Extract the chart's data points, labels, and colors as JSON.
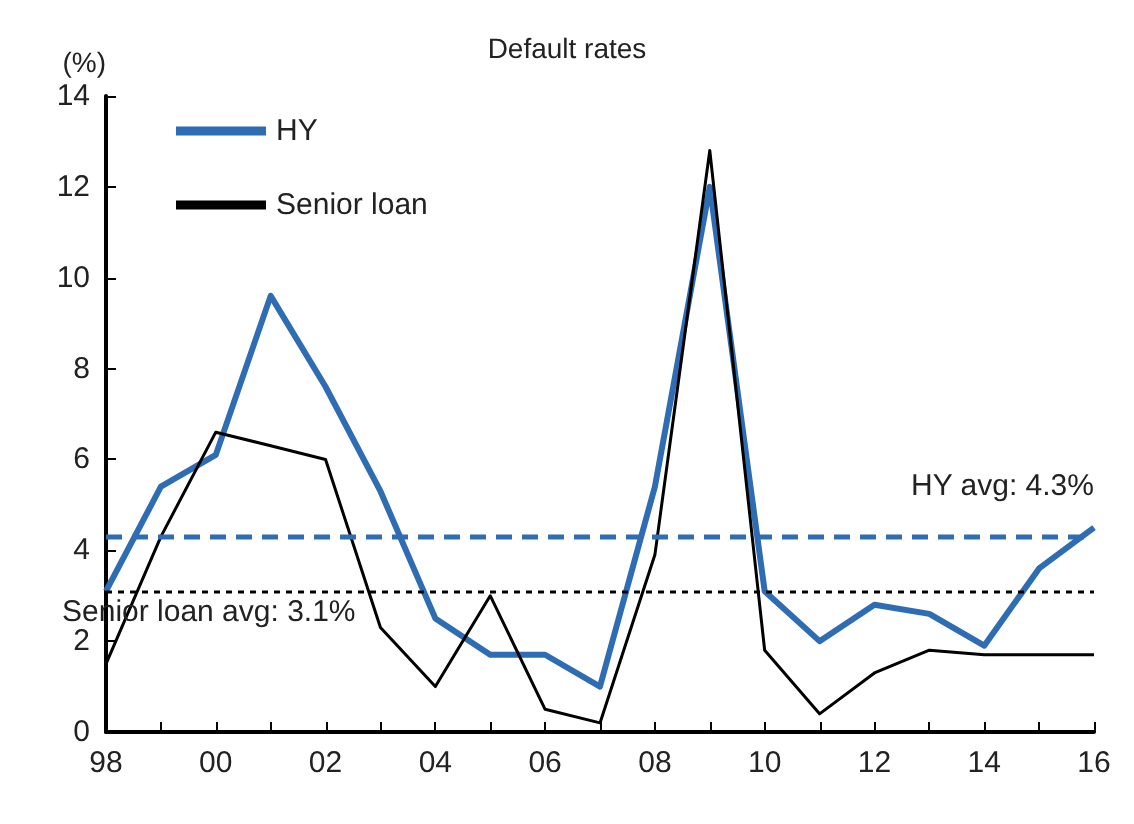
{
  "chart_data": {
    "type": "line",
    "title": "Default rates",
    "ylabel": "(%)",
    "categories": [
      "98",
      null,
      "00",
      null,
      "02",
      null,
      "04",
      null,
      "06",
      null,
      "08",
      null,
      "10",
      null,
      "12",
      null,
      "14",
      null,
      "16"
    ],
    "series": [
      {
        "name": "HY",
        "color": "#2e6db4",
        "values": [
          3.1,
          5.4,
          6.1,
          9.6,
          7.6,
          5.3,
          2.5,
          1.7,
          1.7,
          1.0,
          5.4,
          12.0,
          3.1,
          2.0,
          2.8,
          2.6,
          1.9,
          3.6,
          4.5
        ]
      },
      {
        "name": "Senior loan",
        "color": "#000000",
        "values": [
          1.5,
          4.3,
          6.6,
          6.3,
          6.0,
          2.3,
          1.0,
          3.0,
          0.5,
          0.2,
          3.9,
          12.8,
          1.8,
          0.4,
          1.3,
          1.8,
          1.7,
          1.7,
          1.7
        ]
      }
    ],
    "ylim": [
      0,
      14
    ],
    "yticks": [
      0,
      2,
      4,
      6,
      8,
      10,
      12,
      14
    ],
    "ref_lines": [
      {
        "axis": "y",
        "value": 4.3,
        "label": "HY avg: 4.3%",
        "color": "#2e6db4",
        "line_style": "dashed"
      },
      {
        "axis": "y",
        "value": 3.1,
        "label": "Senior loan avg: 3.1%",
        "color": "#000000",
        "line_style": "dotted"
      }
    ],
    "legend": "top left",
    "grid": false,
    "marker": "none",
    "line_style": "solid"
  }
}
